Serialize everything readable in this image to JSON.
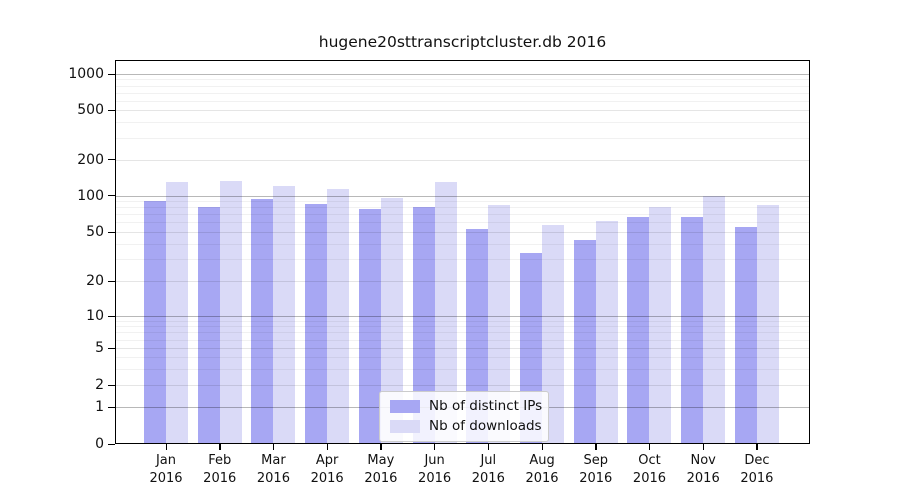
{
  "title": "hugene20sttranscriptcluster.db 2016",
  "chart_data": {
    "type": "bar",
    "title": "hugene20sttranscriptcluster.db 2016",
    "categories": [
      "Jan 2016",
      "Feb 2016",
      "Mar 2016",
      "Apr 2016",
      "May 2016",
      "Jun 2016",
      "Jul 2016",
      "Aug 2016",
      "Sep 2016",
      "Oct 2016",
      "Nov 2016",
      "Dec 2016"
    ],
    "series": [
      {
        "name": "Nb of distinct IPs",
        "color": "#a7a7f3",
        "values": [
          90,
          81,
          93,
          85,
          77,
          81,
          53,
          34,
          43,
          66,
          67,
          55
        ]
      },
      {
        "name": "Nb of downloads",
        "color": "#dadaf7",
        "values": [
          130,
          132,
          120,
          113,
          96,
          129,
          83,
          57,
          62,
          80,
          100,
          84
        ]
      }
    ],
    "y_axis": {
      "scale": "log-like",
      "ticks": [
        0,
        1,
        2,
        5,
        10,
        20,
        50,
        100,
        200,
        500,
        1000
      ],
      "range": [
        0,
        1200
      ]
    },
    "xlabel": "",
    "ylabel": "",
    "grid": true,
    "legend_position": "bottom-center"
  },
  "colors": {
    "background": "#ffffff",
    "frame": "#000000",
    "text": "#111111",
    "grid_major": "rgba(0,0,0,0.28)",
    "grid_mid": "rgba(0,0,0,0.10)",
    "grid_minor": "rgba(0,0,0,0.055)"
  }
}
